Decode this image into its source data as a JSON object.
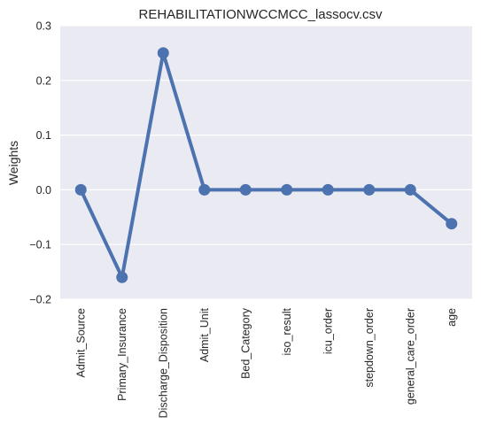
{
  "chart_data": {
    "type": "line",
    "title": "REHABILITATIONWCCMCC_lassocv.csv",
    "xlabel": "",
    "ylabel": "Weights",
    "categories": [
      "Admit_Source",
      "Primary_Insurance",
      "Discharge_Disposition",
      "Admit_Unit",
      "Bed_Category",
      "iso_result",
      "icu_order",
      "stepdown_order",
      "general_care_order",
      "age"
    ],
    "series": [
      {
        "values": [
          0.0,
          -0.16,
          0.25,
          0.0,
          0.0,
          0.0,
          0.0,
          0.0,
          0.0,
          -0.062
        ]
      }
    ],
    "ylim": [
      -0.2,
      0.3
    ],
    "yticks": [
      "−0.2",
      "−0.1",
      "0.0",
      "0.1",
      "0.2",
      "0.3"
    ],
    "ytick_values": [
      -0.2,
      -0.1,
      0.0,
      0.1,
      0.2,
      0.3
    ],
    "grid": true,
    "colors": {
      "background": "#eaeaf2",
      "line": "#4c72b0",
      "grid": "#ffffff"
    }
  }
}
